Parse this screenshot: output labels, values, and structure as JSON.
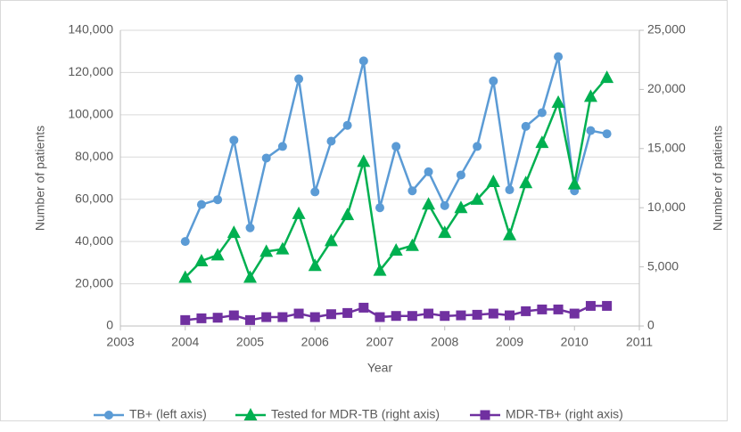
{
  "chart_data": {
    "type": "line",
    "x_label": "Year",
    "y_label": "Number of patients",
    "y2_label": "Number of patients",
    "x": [
      2004,
      2004.25,
      2004.5,
      2004.75,
      2005,
      2005.25,
      2005.5,
      2005.75,
      2006,
      2006.25,
      2006.5,
      2006.75,
      2007,
      2007.25,
      2007.5,
      2007.75,
      2008,
      2008.25,
      2008.5,
      2008.75,
      2009,
      2009.25,
      2009.5,
      2009.75,
      2010,
      2010.25,
      2010.5
    ],
    "series": [
      {
        "name": "TB+ (left axis)",
        "color": "#5b9bd5",
        "marker": "circle",
        "values": [
          40000,
          57500,
          59800,
          88000,
          46500,
          79500,
          85000,
          117000,
          63500,
          87500,
          95000,
          125500,
          56000,
          85000,
          64000,
          73000,
          57000,
          71500,
          85000,
          116000,
          64500,
          94500,
          101000,
          127500,
          64000,
          92500,
          91000
        ]
      },
      {
        "name": "Tested for MDR-TB (right axis)",
        "color": "#00b050",
        "marker": "triangle",
        "axis": "y2",
        "values": [
          4100,
          5500,
          6000,
          7900,
          4100,
          6300,
          6500,
          9500,
          5100,
          7200,
          9400,
          13900,
          4700,
          6400,
          6800,
          10300,
          7900,
          10000,
          10700,
          12200,
          7700,
          12100,
          15500,
          18900,
          12000,
          19400,
          21000
        ]
      },
      {
        "name": "MDR-TB+ (right axis)",
        "color": "#7030a0",
        "marker": "square",
        "axis": "y2",
        "values": [
          500,
          650,
          700,
          900,
          500,
          750,
          750,
          1050,
          750,
          1000,
          1100,
          1550,
          750,
          850,
          850,
          1050,
          850,
          900,
          950,
          1050,
          900,
          1250,
          1400,
          1400,
          1050,
          1700,
          1700
        ]
      }
    ],
    "xlim": [
      2003,
      2011
    ],
    "xticks": [
      2003,
      2004,
      2005,
      2006,
      2007,
      2008,
      2009,
      2010,
      2011
    ],
    "ylim": [
      0,
      140000
    ],
    "yticks": [
      0,
      {
        "value": 20000,
        "label": "20,000"
      },
      {
        "value": 40000,
        "label": "40,000"
      },
      {
        "value": 60000,
        "label": "60,000"
      },
      {
        "value": 80000,
        "label": "80,000"
      },
      {
        "value": 100000,
        "label": "100,000"
      },
      {
        "value": 120000,
        "label": "120,000"
      },
      {
        "value": 140000,
        "label": "140,000"
      }
    ],
    "y2lim": [
      0,
      25000
    ],
    "y2ticks": [
      0,
      {
        "value": 5000,
        "label": "5,000"
      },
      {
        "value": 10000,
        "label": "10,000"
      },
      {
        "value": 15000,
        "label": "15,000"
      },
      {
        "value": 20000,
        "label": "20,000"
      },
      {
        "value": 25000,
        "label": "25,000"
      }
    ],
    "grid": true,
    "legend": "bottom"
  }
}
